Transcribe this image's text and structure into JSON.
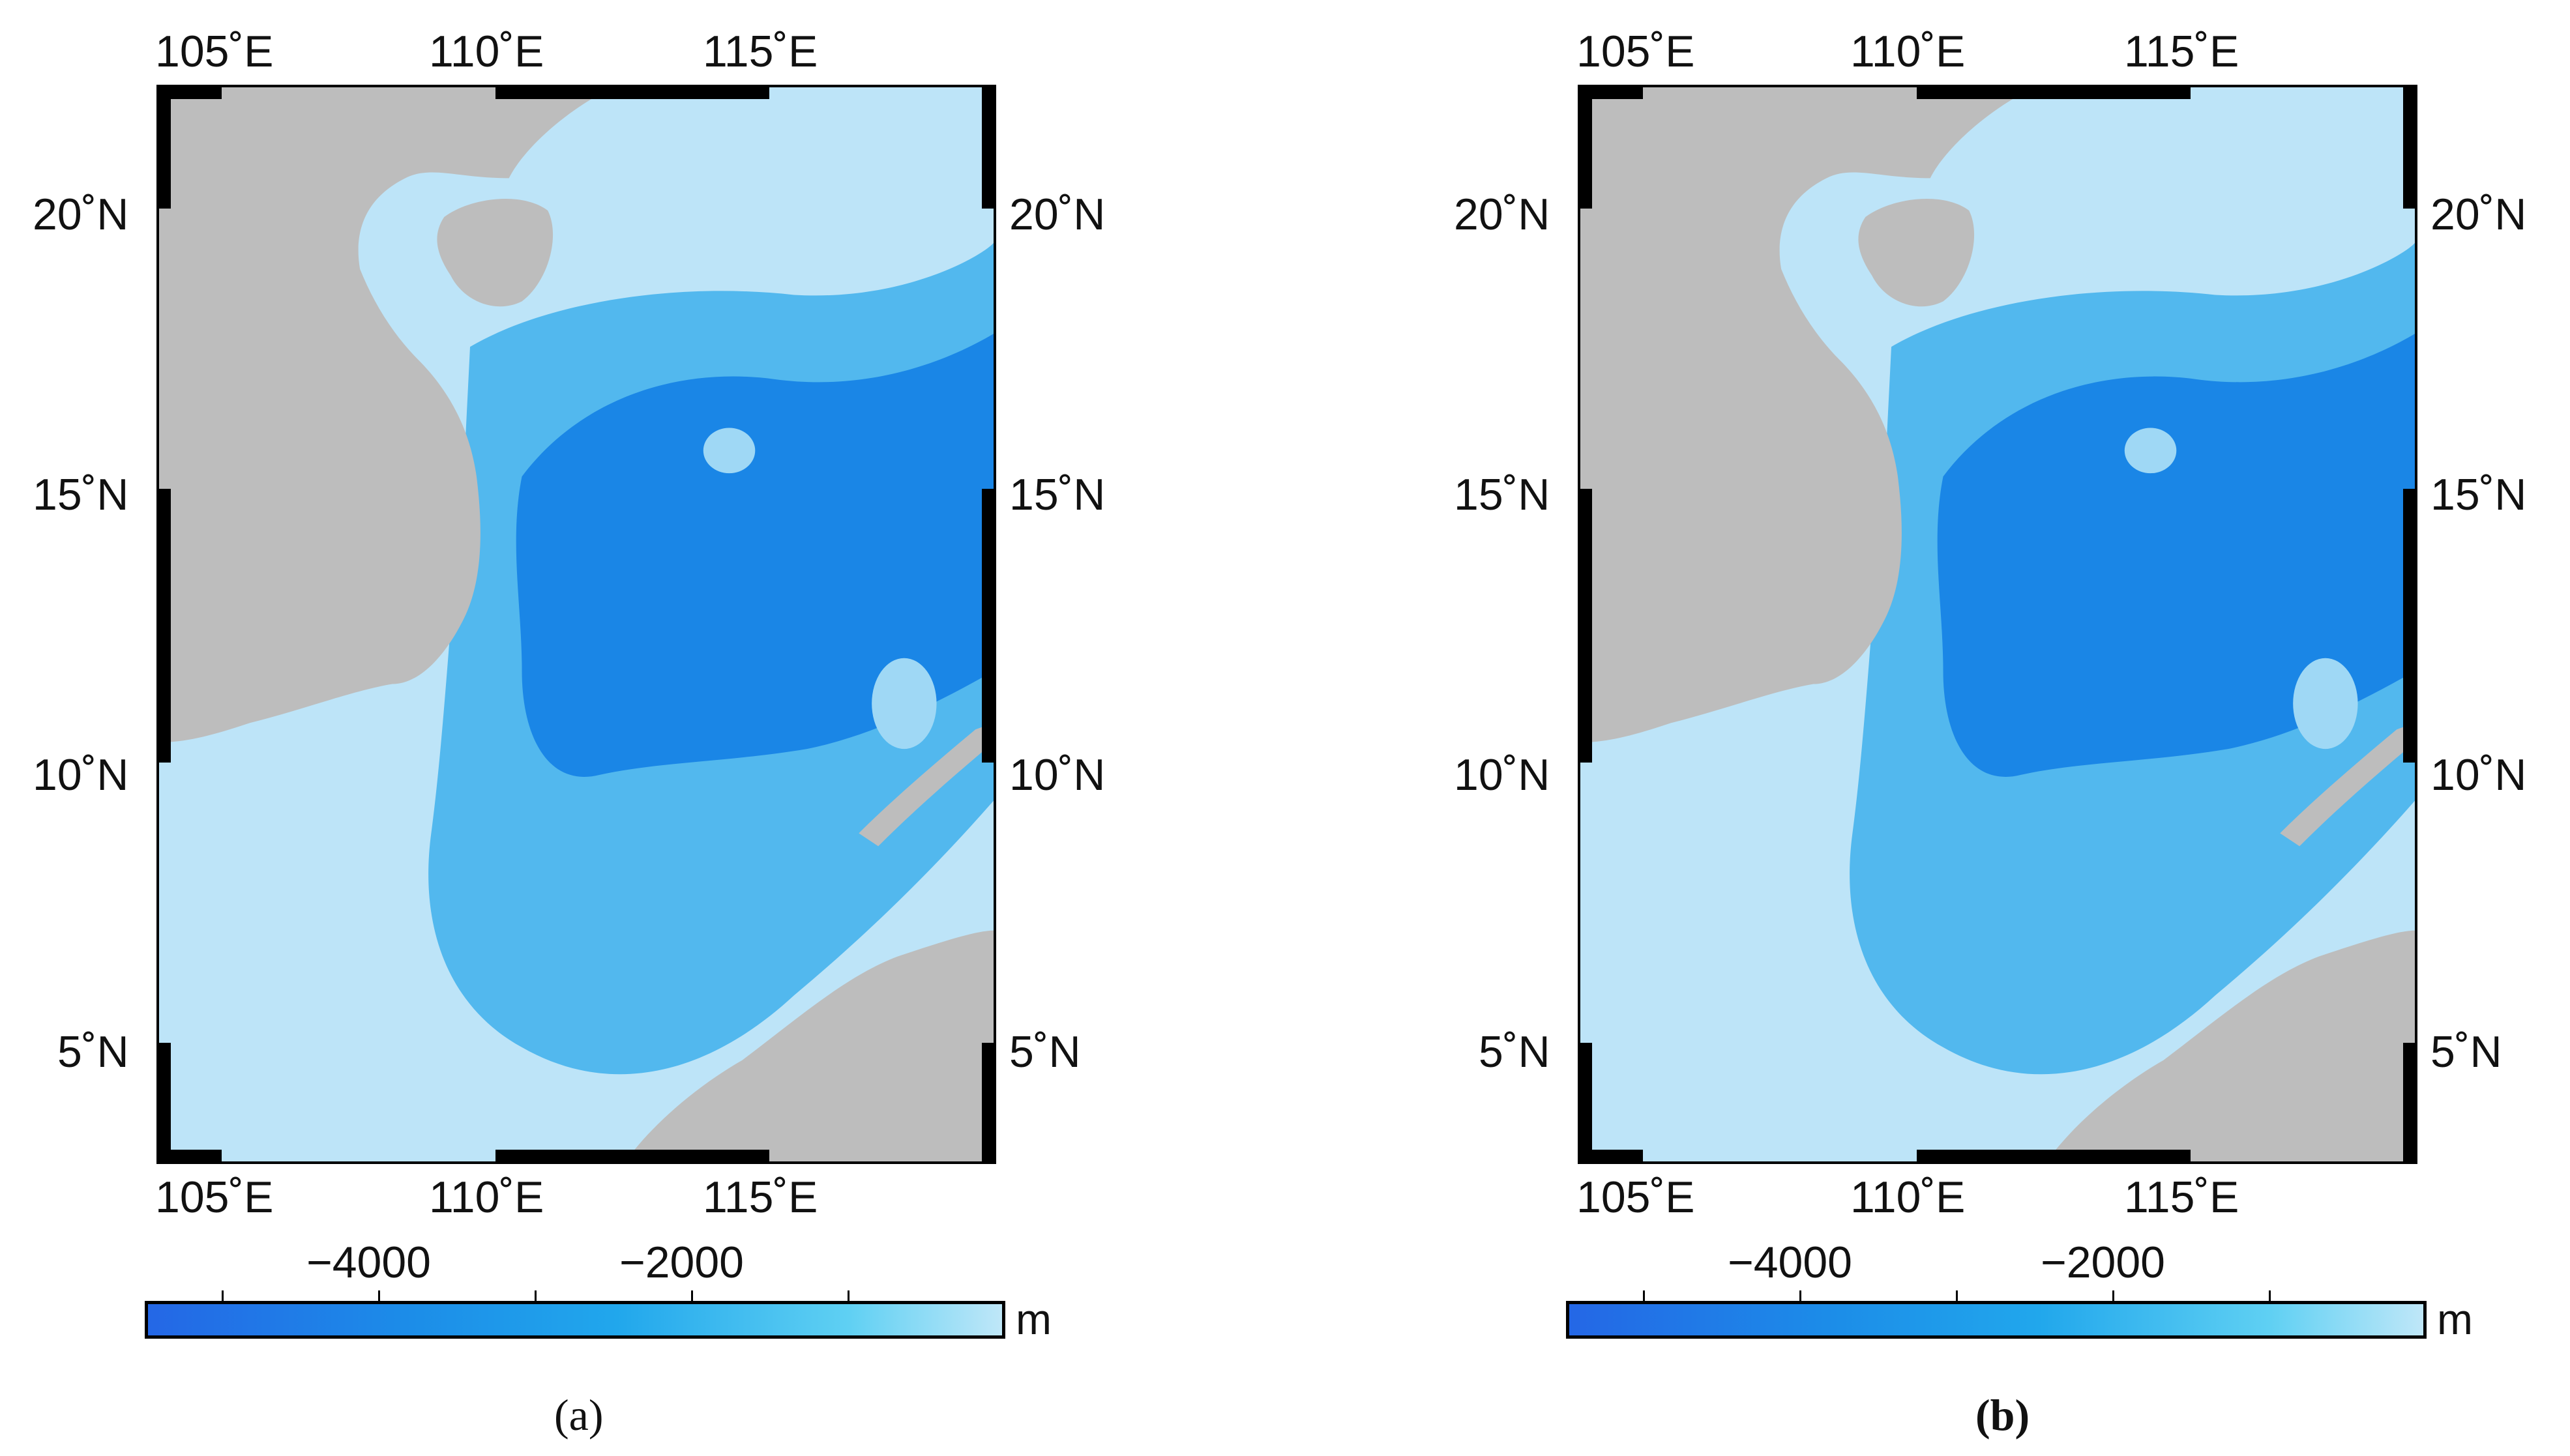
{
  "panels": [
    {
      "id": "a",
      "label": "(a)",
      "lon_ticks": [
        "105˚E",
        "110˚E",
        "115˚E"
      ],
      "lat_ticks": [
        "20˚N",
        "15˚N",
        "10˚N",
        "5˚N"
      ],
      "colorbar_ticks": [
        "−4000",
        "−2000"
      ],
      "colorbar_unit": "m"
    },
    {
      "id": "b",
      "label": "(b)",
      "lon_ticks": [
        "105˚E",
        "110˚E",
        "115˚E"
      ],
      "lat_ticks": [
        "20˚N",
        "15˚N",
        "10˚N",
        "5˚N"
      ],
      "colorbar_ticks": [
        "−4000",
        "−2000"
      ],
      "colorbar_unit": "m"
    }
  ],
  "map_extent": {
    "lon_min": 103.9,
    "lon_max": 119.1,
    "lat_min": 3.0,
    "lat_max": 22.2
  },
  "colorbar_range": {
    "min": -5500,
    "max": 0
  },
  "colors": {
    "land": "#bdbdbd",
    "shallow": "#bfe6f8",
    "mid": "#52b8ee",
    "deep": "#1a86e6",
    "deepest": "#1270d8"
  }
}
